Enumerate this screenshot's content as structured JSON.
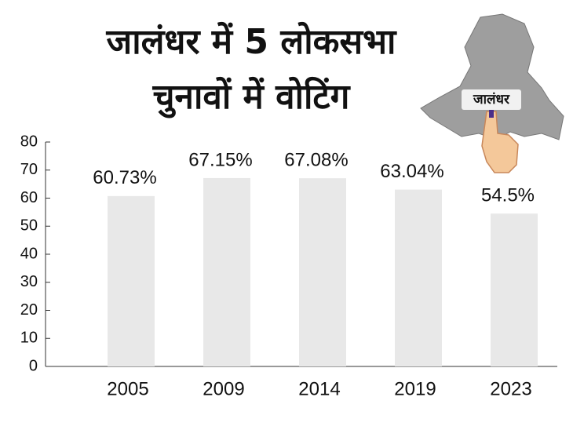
{
  "chart_data": {
    "type": "bar",
    "title": [
      "जालंधर में 5 लोकसभा",
      "चुनावों में वोटिंग"
    ],
    "annotation": "जालंधर",
    "categories": [
      "2005",
      "2009",
      "2014",
      "2019",
      "2023"
    ],
    "values": [
      60.73,
      67.15,
      67.08,
      63.04,
      54.5
    ],
    "value_labels": [
      "60.73%",
      "67.15%",
      "67.08%",
      "63.04%",
      "54.5%"
    ],
    "color": "#e8e8e8",
    "ylim": [
      0,
      80
    ],
    "yticks": [
      0,
      10,
      20,
      30,
      40,
      50,
      60,
      70,
      80
    ],
    "grid": false
  }
}
